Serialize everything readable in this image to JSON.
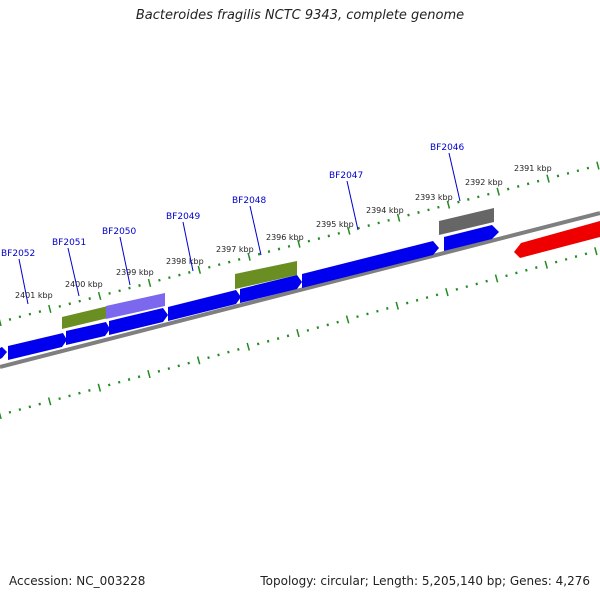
{
  "title": "Bacteroides fragilis NCTC 9343, complete genome",
  "footer": {
    "accession": "Accession: NC_003228",
    "topology": "Topology: circular; Length: 5,205,140 bp; Genes: 4,276"
  },
  "colors": {
    "cds": "#0000ee",
    "trna_red": "#ee0000",
    "olive": "#6b8e23",
    "purple": "#7b68ee",
    "grey": "#666666",
    "backbone": "#808080",
    "tick": "#228b22",
    "label_line": "#0000cc"
  },
  "scale_labels": [
    "2401 kbp",
    "2400 kbp",
    "2399 kbp",
    "2398 kbp",
    "2397 kbp",
    "2396 kbp",
    "2395 kbp",
    "2394 kbp",
    "2393 kbp",
    "2392 kbp",
    "2391 kbp"
  ],
  "gene_labels": [
    "BF2052",
    "BF2051",
    "BF2050",
    "BF2049",
    "BF2048",
    "BF2047",
    "BF2046"
  ]
}
